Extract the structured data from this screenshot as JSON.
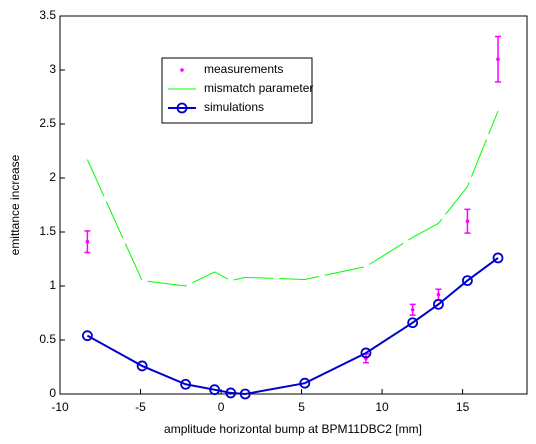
{
  "chart_data": {
    "type": "line",
    "xlabel": "amplitude horizontal bump at BPM11DBC2 [mm]",
    "ylabel": "emittance increase",
    "xlim": [
      -10,
      19
    ],
    "xticks": [
      -10,
      -5,
      0,
      5,
      10,
      15
    ],
    "ylim": [
      0,
      3.5
    ],
    "yticks": [
      0,
      0.5,
      1,
      1.5,
      2,
      2.5,
      3,
      3.5
    ],
    "legend": "upper center",
    "series": [
      {
        "name": "measurements",
        "color": "#ff00ff",
        "style": "errorbar",
        "x": [
          -8.3,
          9.0,
          11.9,
          13.5,
          15.3,
          17.2
        ],
        "values": [
          1.41,
          0.33,
          0.78,
          0.92,
          1.6,
          3.1
        ],
        "errors": [
          0.1,
          0.04,
          0.05,
          0.05,
          0.11,
          0.21
        ]
      },
      {
        "name": "mismatch parameter",
        "color": "#00ff00",
        "style": "dashed",
        "x": [
          -8.3,
          -4.9,
          -2.2,
          -0.4,
          0.6,
          1.5,
          5.2,
          9.0,
          11.9,
          13.5,
          15.3,
          17.2
        ],
        "values": [
          2.17,
          1.05,
          1.0,
          1.13,
          1.05,
          1.08,
          1.06,
          1.18,
          1.45,
          1.58,
          1.92,
          2.62
        ]
      },
      {
        "name": "simulations",
        "color": "#0000cc",
        "style": "line-circle",
        "x": [
          -8.3,
          -4.9,
          -2.2,
          -0.4,
          0.6,
          1.5,
          5.2,
          9.0,
          11.9,
          13.5,
          15.3,
          17.2
        ],
        "values": [
          0.54,
          0.26,
          0.09,
          0.04,
          0.01,
          0.0,
          0.1,
          0.38,
          0.66,
          0.83,
          1.05,
          1.26
        ]
      }
    ]
  }
}
